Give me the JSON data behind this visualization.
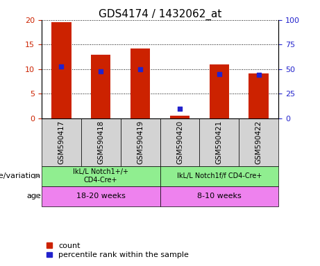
{
  "title": "GDS4174 / 1432062_at",
  "samples": [
    "GSM590417",
    "GSM590418",
    "GSM590419",
    "GSM590420",
    "GSM590421",
    "GSM590422"
  ],
  "count_values": [
    19.5,
    13.0,
    14.2,
    0.6,
    11.0,
    9.2
  ],
  "percentile_values": [
    53,
    48,
    50,
    10,
    45,
    44
  ],
  "ylim_left": [
    0,
    20
  ],
  "ylim_right": [
    0,
    100
  ],
  "yticks_left": [
    0,
    5,
    10,
    15,
    20
  ],
  "yticks_right": [
    0,
    25,
    50,
    75,
    100
  ],
  "bar_color": "#cc2200",
  "dot_color": "#2222cc",
  "tick_color_left": "#cc2200",
  "tick_color_right": "#2222cc",
  "genotype_groups": [
    {
      "label": "IkL/L Notch1+/+\nCD4-Cre+",
      "start": 0,
      "end": 3,
      "color": "#90ee90"
    },
    {
      "label": "IkL/L Notch1f/f CD4-Cre+",
      "start": 3,
      "end": 6,
      "color": "#90ee90"
    }
  ],
  "age_groups": [
    {
      "label": "18-20 weeks",
      "start": 0,
      "end": 3,
      "color": "#ee82ee"
    },
    {
      "label": "8-10 weeks",
      "start": 3,
      "end": 6,
      "color": "#ee82ee"
    }
  ],
  "genotype_label": "genotype/variation",
  "age_label": "age",
  "legend_count": "count",
  "legend_percentile": "percentile rank within the sample",
  "sample_bg_color": "#d3d3d3",
  "title_fontsize": 11,
  "axis_fontsize": 8,
  "bar_width": 0.5
}
